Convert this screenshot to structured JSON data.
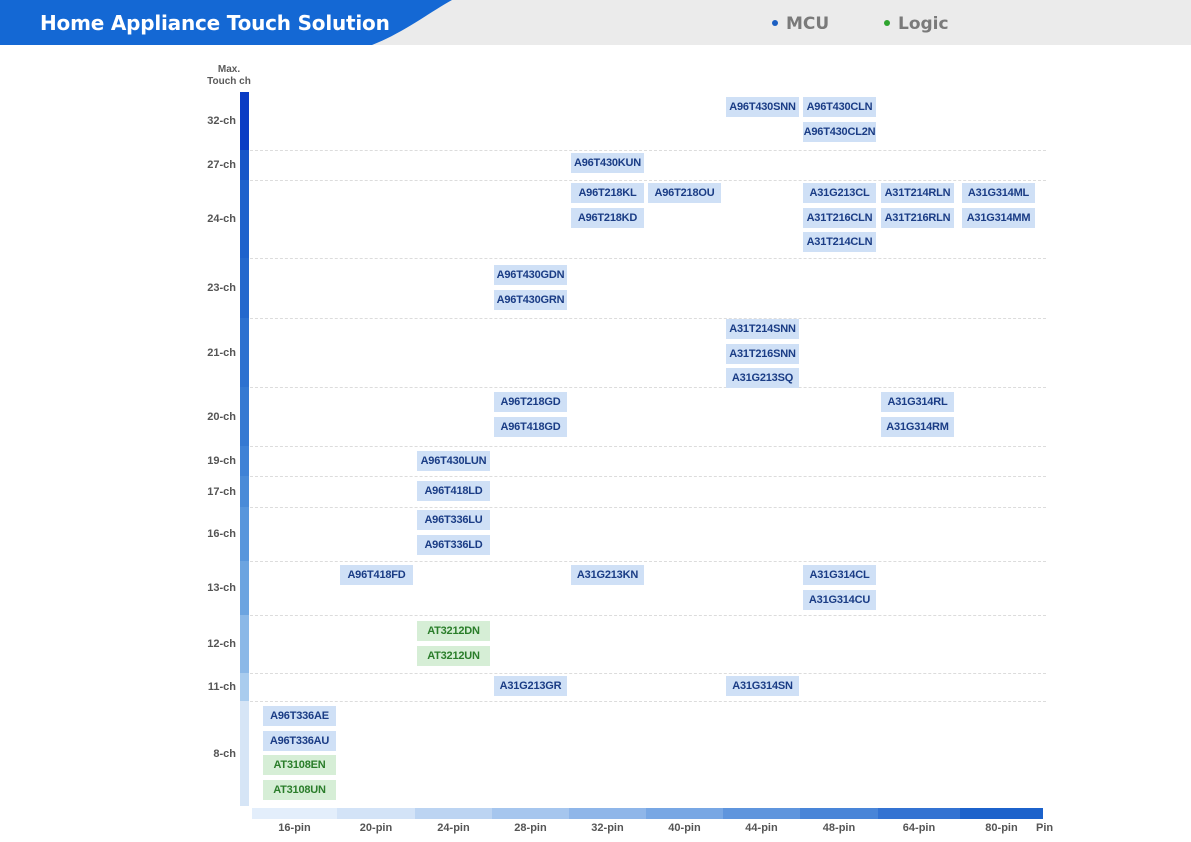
{
  "header": {
    "title": "Home Appliance Touch Solution",
    "legend": [
      {
        "label": "MCU",
        "color": "#1b5fc2"
      },
      {
        "label": "Logic",
        "color": "#2ea42e"
      }
    ]
  },
  "chart_data": {
    "type": "table",
    "title": "Home Appliance Touch Solution",
    "ylabel": "Max. Touch ch",
    "xlabel": "Pin",
    "x_categories": [
      "16-pin",
      "20-pin",
      "24-pin",
      "28-pin",
      "32-pin",
      "40-pin",
      "44-pin",
      "48-pin",
      "64-pin",
      "80-pin"
    ],
    "y_categories": [
      "32-ch",
      "27-ch",
      "24-ch",
      "23-ch",
      "21-ch",
      "20-ch",
      "19-ch",
      "17-ch",
      "16-ch",
      "13-ch",
      "12-ch",
      "11-ch",
      "8-ch"
    ],
    "series": [
      {
        "name": "MCU",
        "color": "#1b5fc2"
      },
      {
        "name": "Logic",
        "color": "#2ea42e"
      }
    ],
    "cells": [
      {
        "pin": "44-pin",
        "ch": "32-ch",
        "type": "MCU",
        "parts": [
          "A96T430SNN"
        ]
      },
      {
        "pin": "48-pin",
        "ch": "32-ch",
        "type": "MCU",
        "parts": [
          "A96T430CLN",
          "A96T430CL2N"
        ]
      },
      {
        "pin": "32-pin",
        "ch": "27-ch",
        "type": "MCU",
        "parts": [
          "A96T430KUN"
        ]
      },
      {
        "pin": "32-pin",
        "ch": "24-ch",
        "type": "MCU",
        "parts": [
          "A96T218KL",
          "A96T218KD"
        ]
      },
      {
        "pin": "40-pin",
        "ch": "24-ch",
        "type": "MCU",
        "parts": [
          "A96T218OU"
        ]
      },
      {
        "pin": "48-pin",
        "ch": "24-ch",
        "type": "MCU",
        "parts": [
          "A31G213CL",
          "A31T216CLN",
          "A31T214CLN"
        ]
      },
      {
        "pin": "64-pin",
        "ch": "24-ch",
        "type": "MCU",
        "parts": [
          "A31T214RLN",
          "A31T216RLN"
        ]
      },
      {
        "pin": "80-pin",
        "ch": "24-ch",
        "type": "MCU",
        "parts": [
          "A31G314ML",
          "A31G314MM"
        ]
      },
      {
        "pin": "28-pin",
        "ch": "23-ch",
        "type": "MCU",
        "parts": [
          "A96T430GDN",
          "A96T430GRN"
        ]
      },
      {
        "pin": "44-pin",
        "ch": "21-ch",
        "type": "MCU",
        "parts": [
          "A31T214SNN",
          "A31T216SNN",
          "A31G213SQ"
        ]
      },
      {
        "pin": "28-pin",
        "ch": "20-ch",
        "type": "MCU",
        "parts": [
          "A96T218GD",
          "A96T418GD"
        ]
      },
      {
        "pin": "64-pin",
        "ch": "20-ch",
        "type": "MCU",
        "parts": [
          "A31G314RL",
          "A31G314RM"
        ]
      },
      {
        "pin": "24-pin",
        "ch": "19-ch",
        "type": "MCU",
        "parts": [
          "A96T430LUN"
        ]
      },
      {
        "pin": "24-pin",
        "ch": "17-ch",
        "type": "MCU",
        "parts": [
          "A96T418LD"
        ]
      },
      {
        "pin": "24-pin",
        "ch": "16-ch",
        "type": "MCU",
        "parts": [
          "A96T336LU",
          "A96T336LD"
        ]
      },
      {
        "pin": "20-pin",
        "ch": "13-ch",
        "type": "MCU",
        "parts": [
          "A96T418FD"
        ]
      },
      {
        "pin": "32-pin",
        "ch": "13-ch",
        "type": "MCU",
        "parts": [
          "A31G213KN"
        ]
      },
      {
        "pin": "48-pin",
        "ch": "13-ch",
        "type": "MCU",
        "parts": [
          "A31G314CL",
          "A31G314CU"
        ]
      },
      {
        "pin": "24-pin",
        "ch": "12-ch",
        "type": "Logic",
        "parts": [
          "AT3212DN",
          "AT3212UN"
        ]
      },
      {
        "pin": "28-pin",
        "ch": "11-ch",
        "type": "MCU",
        "parts": [
          "A31G213GR"
        ]
      },
      {
        "pin": "44-pin",
        "ch": "11-ch",
        "type": "MCU",
        "parts": [
          "A31G314SN"
        ]
      },
      {
        "pin": "16-pin",
        "ch": "8-ch",
        "type": "MCU",
        "parts": [
          "A96T336AE",
          "A96T336AU"
        ]
      },
      {
        "pin": "16-pin",
        "ch": "8-ch",
        "type": "Logic",
        "parts": [
          "AT3108EN",
          "AT3108UN"
        ]
      }
    ]
  }
}
